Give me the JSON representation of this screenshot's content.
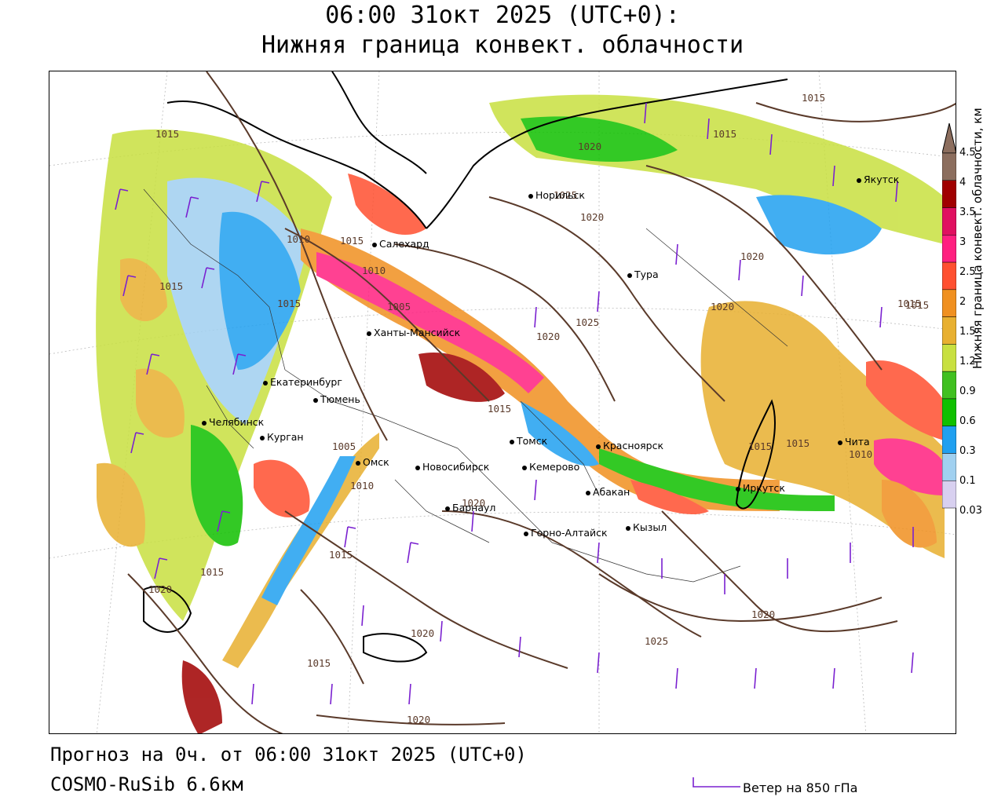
{
  "header": {
    "title_line1": "06:00 31окт 2025 (UTC+0):",
    "title_line2": "Нижняя граница конвект. облачности"
  },
  "footer": {
    "forecast_text": "Прогноз на 0ч. от 06:00 31окт 2025 (UTC+0)",
    "model_text": "COSMO-RuSib 6.6км",
    "wind_legend_label": "Ветер на 850 гПа"
  },
  "colorbar": {
    "title": "Нижняя граница конвект. облачности, км",
    "ticks": [
      "4.5",
      "4",
      "3.5",
      "3",
      "2.5",
      "2",
      "1.5",
      "1.2",
      "0.9",
      "0.6",
      "0.3",
      "0.1",
      "0.03"
    ],
    "colors": [
      "#8c6e5e",
      "#a00000",
      "#e01060",
      "#ff2080",
      "#ff5030",
      "#f09020",
      "#e8b030",
      "#c8e040",
      "#40c020",
      "#10c000",
      "#20a0f0",
      "#a0d0f0",
      "#d8d0f0"
    ]
  },
  "cities": [
    {
      "name": "Салехард"
    },
    {
      "name": "Ханты-Мансийск"
    },
    {
      "name": "Екатеринбург"
    },
    {
      "name": "Тюмень"
    },
    {
      "name": "Челябинск"
    },
    {
      "name": "Курган"
    },
    {
      "name": "Омск"
    },
    {
      "name": "Новосибирск"
    },
    {
      "name": "Томск"
    },
    {
      "name": "Кемерово"
    },
    {
      "name": "Барнаул"
    },
    {
      "name": "Горно-Алтайск"
    },
    {
      "name": "Абакан"
    },
    {
      "name": "Кызыл"
    },
    {
      "name": "Красноярск"
    },
    {
      "name": "Иркутск"
    },
    {
      "name": "Чита"
    },
    {
      "name": "Якутск"
    },
    {
      "name": "Тура"
    },
    {
      "name": "Норильск"
    }
  ],
  "isobars": {
    "labels": [
      "1015",
      "1015",
      "1015",
      "1020",
      "1025",
      "1020",
      "1015",
      "1020",
      "1010",
      "1015",
      "1015",
      "1015",
      "1005",
      "1010",
      "1020",
      "1025",
      "1020",
      "1015",
      "1005",
      "1010",
      "1020",
      "1015",
      "1015",
      "1015",
      "1020",
      "1015",
      "1015",
      "1010",
      "1020",
      "1020",
      "1025",
      "1020",
      "1015"
    ]
  }
}
